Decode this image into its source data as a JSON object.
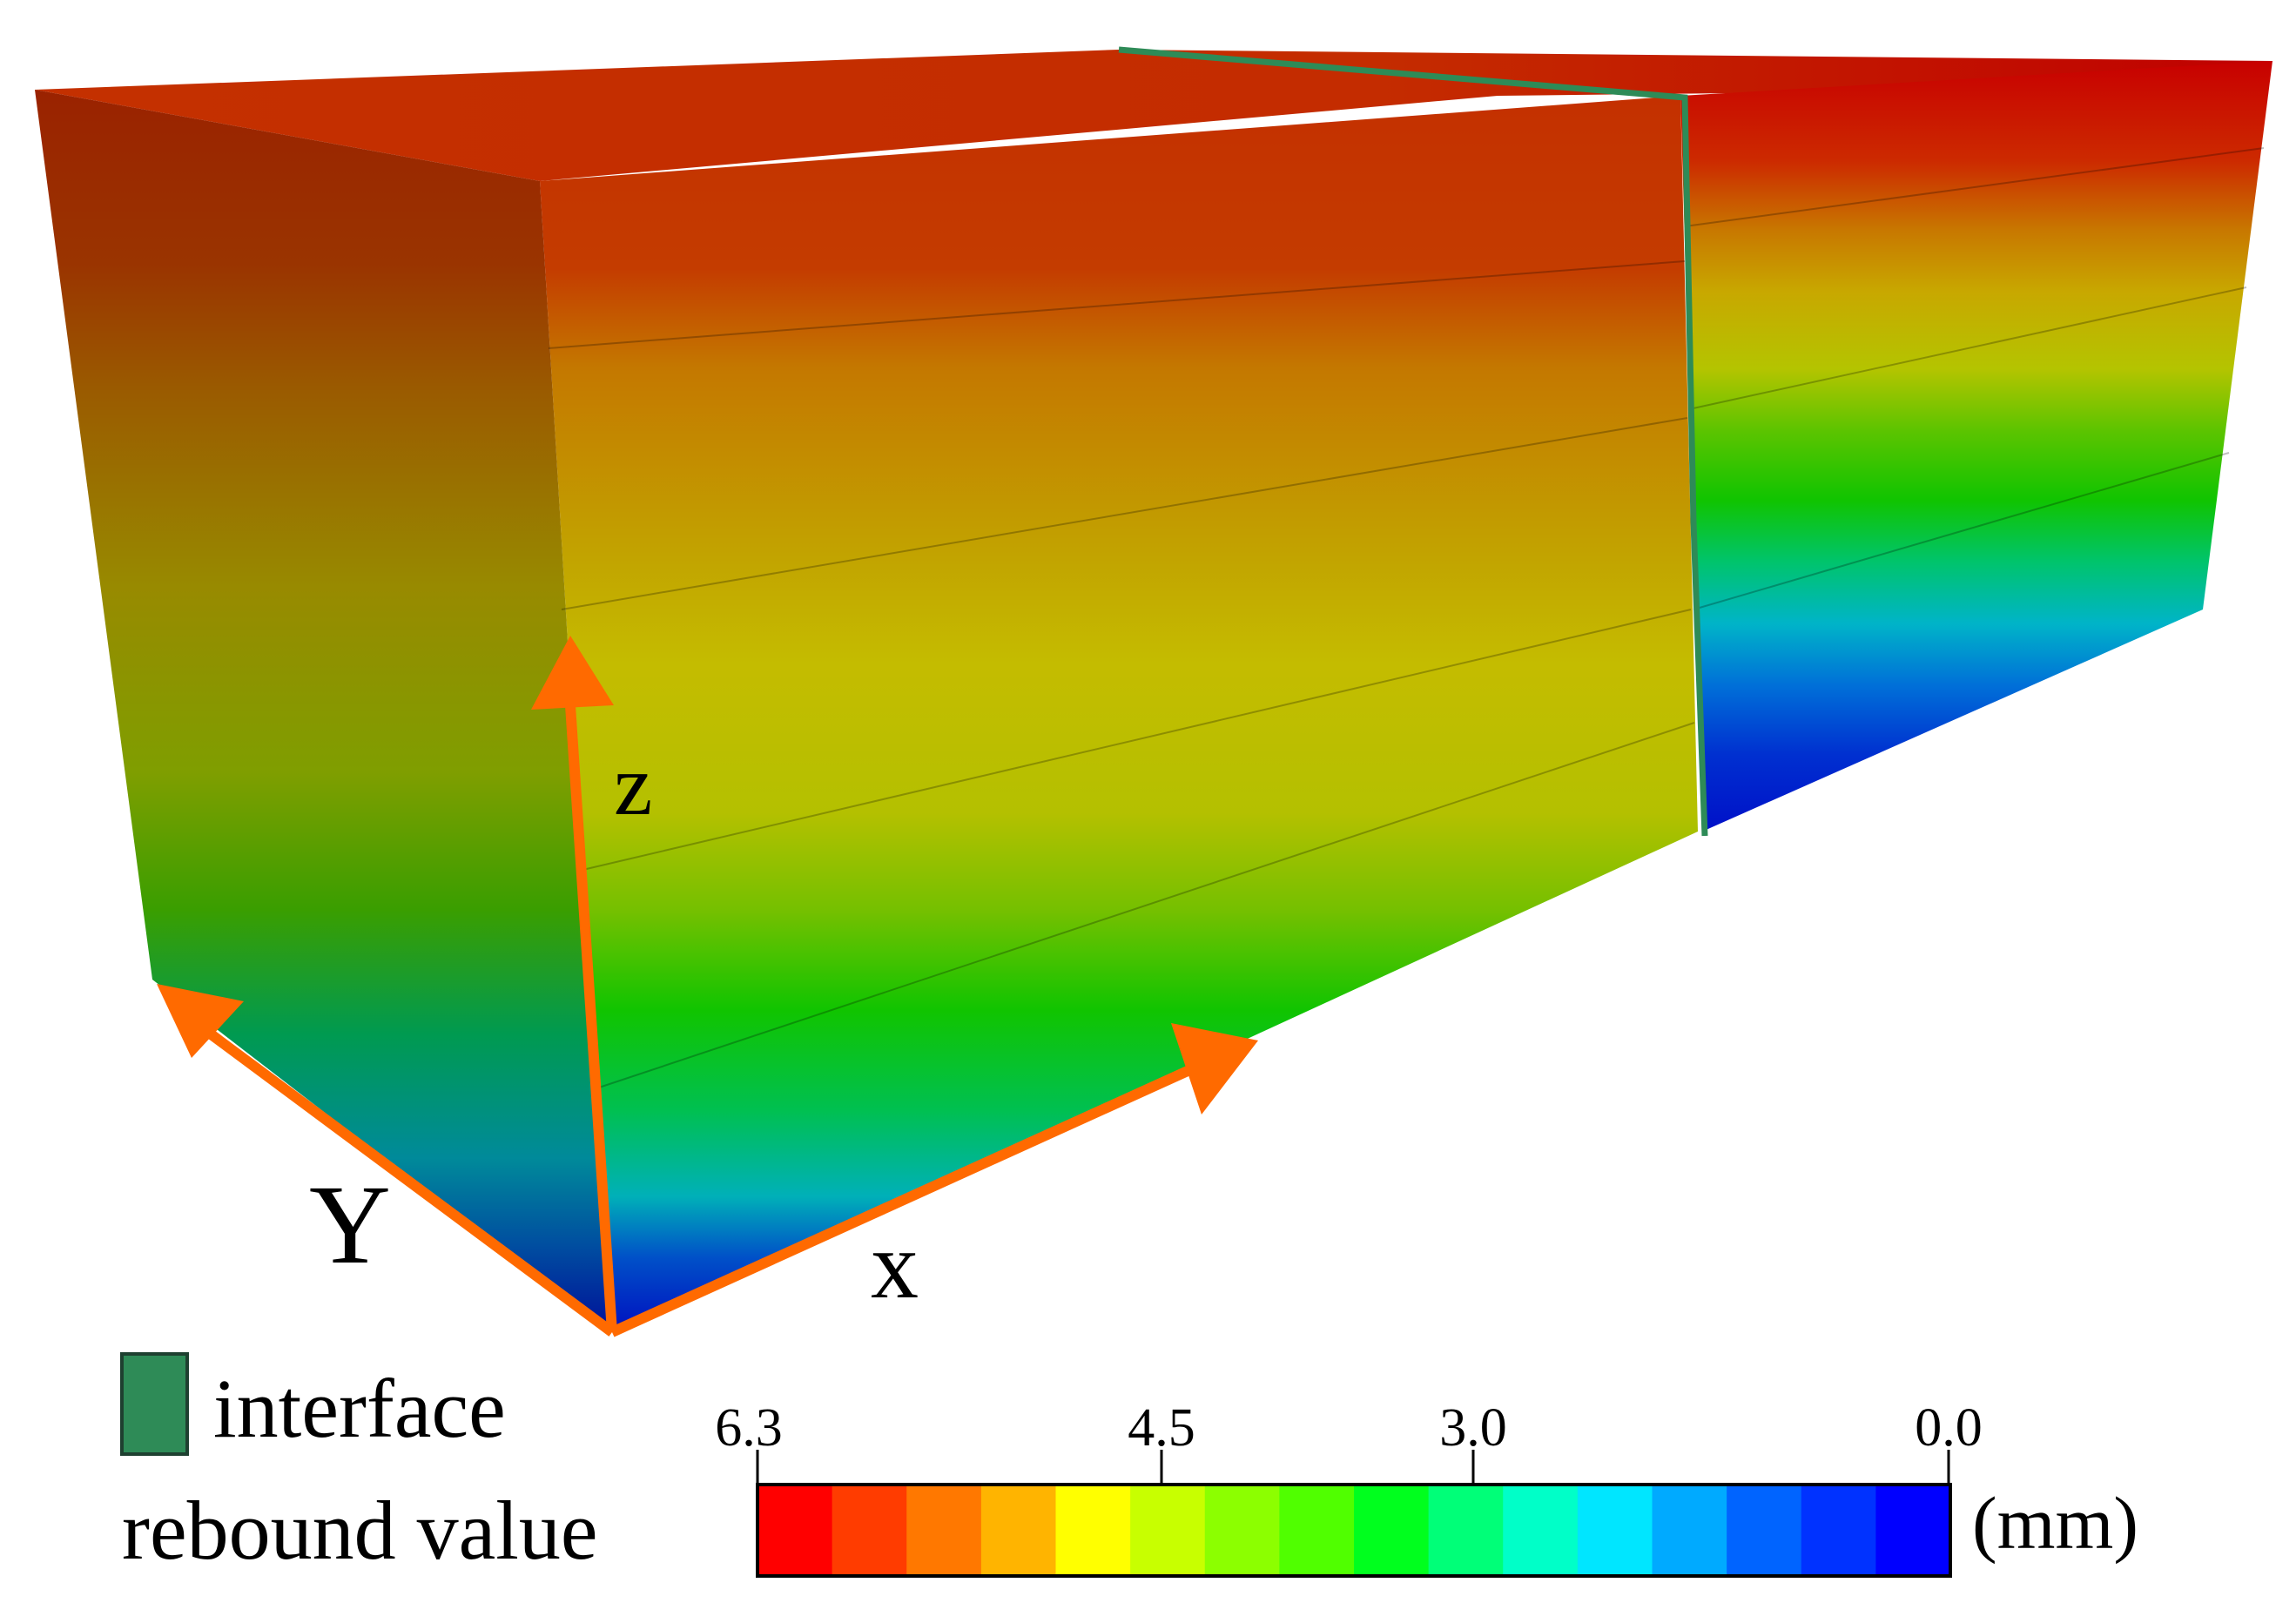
{
  "axes": {
    "z": "z",
    "y": "Y",
    "x": "x"
  },
  "legend": {
    "interface_label": "interface",
    "interface_color": "#2e8b57",
    "rebound_label": "rebound value",
    "unit": "(mm)",
    "ticks": [
      "6.3",
      "4.5",
      "3.0",
      "0.0"
    ],
    "colors": [
      "#ff0000",
      "#ff3c00",
      "#ff7800",
      "#ffb400",
      "#ffff00",
      "#c8ff00",
      "#8cff00",
      "#50ff00",
      "#00ff1e",
      "#00ff78",
      "#00ffc8",
      "#00e6ff",
      "#00aaff",
      "#0064ff",
      "#0032ff",
      "#0000ff"
    ]
  },
  "colors": {
    "arrow": "#ff6a00"
  }
}
